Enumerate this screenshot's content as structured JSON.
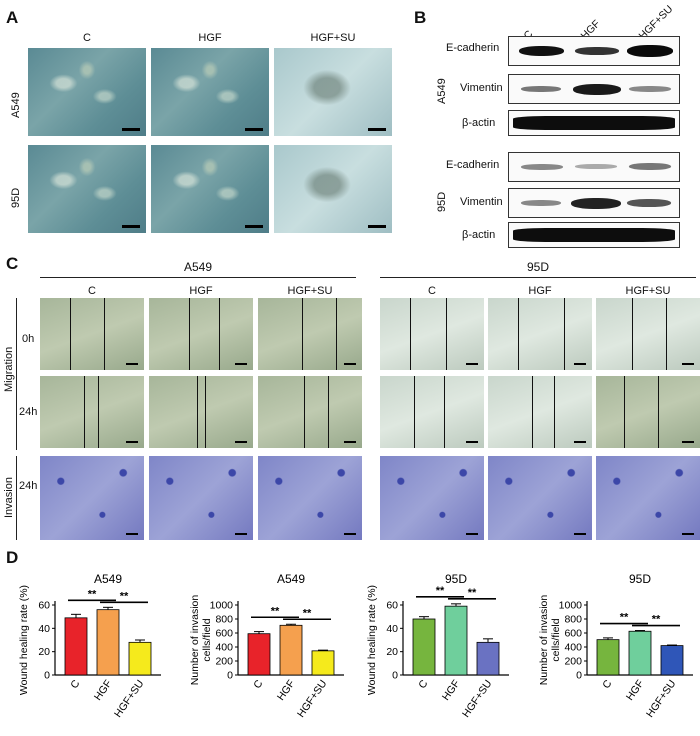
{
  "panel_a": {
    "letter": "A",
    "columns": [
      "C",
      "HGF",
      "HGF+SU"
    ],
    "rows": [
      "A549",
      "95D"
    ]
  },
  "panel_b": {
    "letter": "B",
    "columns": [
      "C",
      "HGF",
      "HGF+SU"
    ],
    "groups": [
      {
        "cell_line": "A549",
        "proteins": [
          "E-cadherin",
          "Vimentin",
          "β-actin"
        ]
      },
      {
        "cell_line": "95D",
        "proteins": [
          "E-cadherin",
          "Vimentin",
          "β-actin"
        ]
      }
    ]
  },
  "panel_c": {
    "letter": "C",
    "cell_lines": [
      "A549",
      "95D"
    ],
    "columns": [
      "C",
      "HGF",
      "HGF+SU"
    ],
    "assays": [
      "Migration",
      "Invasion"
    ],
    "timepoints": [
      "0h",
      "24h",
      "24h"
    ]
  },
  "panel_d": {
    "letter": "D",
    "significance": "**"
  },
  "chart_data": [
    {
      "type": "bar",
      "title": "A549",
      "ylabel": "Wound healing rate (%)",
      "categories": [
        "C",
        "HGF",
        "HGF+SU"
      ],
      "values": [
        49,
        56,
        28
      ],
      "errors": [
        3,
        2,
        2
      ],
      "colors": [
        "#e8232a",
        "#f5a04e",
        "#f5ea1c"
      ],
      "ylim": [
        0,
        60
      ],
      "yticks": [
        "0",
        "20",
        "40",
        "60"
      ],
      "significance": [
        [
          "C",
          "HGF",
          "**"
        ],
        [
          "HGF",
          "HGF+SU",
          "**"
        ]
      ]
    },
    {
      "type": "bar",
      "title": "A549",
      "ylabel": "Number of invasion cells/field",
      "categories": [
        "C",
        "HGF",
        "HGF+SU"
      ],
      "values": [
        590,
        710,
        345
      ],
      "errors": [
        30,
        15,
        10
      ],
      "colors": [
        "#e8232a",
        "#f5a04e",
        "#f5ea1c"
      ],
      "ylim": [
        0,
        1000
      ],
      "yticks": [
        "0",
        "200",
        "400",
        "600",
        "800",
        "1000"
      ],
      "significance": [
        [
          "C",
          "HGF",
          "**"
        ],
        [
          "HGF",
          "HGF+SU",
          "**"
        ]
      ]
    },
    {
      "type": "bar",
      "title": "95D",
      "ylabel": "Wound healing rate (%)",
      "categories": [
        "C",
        "HGF",
        "HGF+SU"
      ],
      "values": [
        48,
        59,
        28
      ],
      "errors": [
        2,
        2,
        3
      ],
      "colors": [
        "#76b53e",
        "#6fcf9c",
        "#6a72c2"
      ],
      "ylim": [
        0,
        60
      ],
      "yticks": [
        "0",
        "20",
        "40",
        "60"
      ],
      "significance": [
        [
          "C",
          "HGF",
          "**"
        ],
        [
          "HGF",
          "HGF+SU",
          "**"
        ]
      ]
    },
    {
      "type": "bar",
      "title": "95D",
      "ylabel": "Number of invasion cells/field",
      "categories": [
        "C",
        "HGF",
        "HGF+SU"
      ],
      "values": [
        505,
        625,
        420
      ],
      "errors": [
        25,
        10,
        8
      ],
      "colors": [
        "#76b53e",
        "#6fcf9c",
        "#2f56b8"
      ],
      "ylim": [
        0,
        1000
      ],
      "yticks": [
        "0",
        "200",
        "400",
        "600",
        "800",
        "1000"
      ],
      "significance": [
        [
          "C",
          "HGF",
          "**"
        ],
        [
          "HGF",
          "HGF+SU",
          "**"
        ]
      ]
    }
  ]
}
